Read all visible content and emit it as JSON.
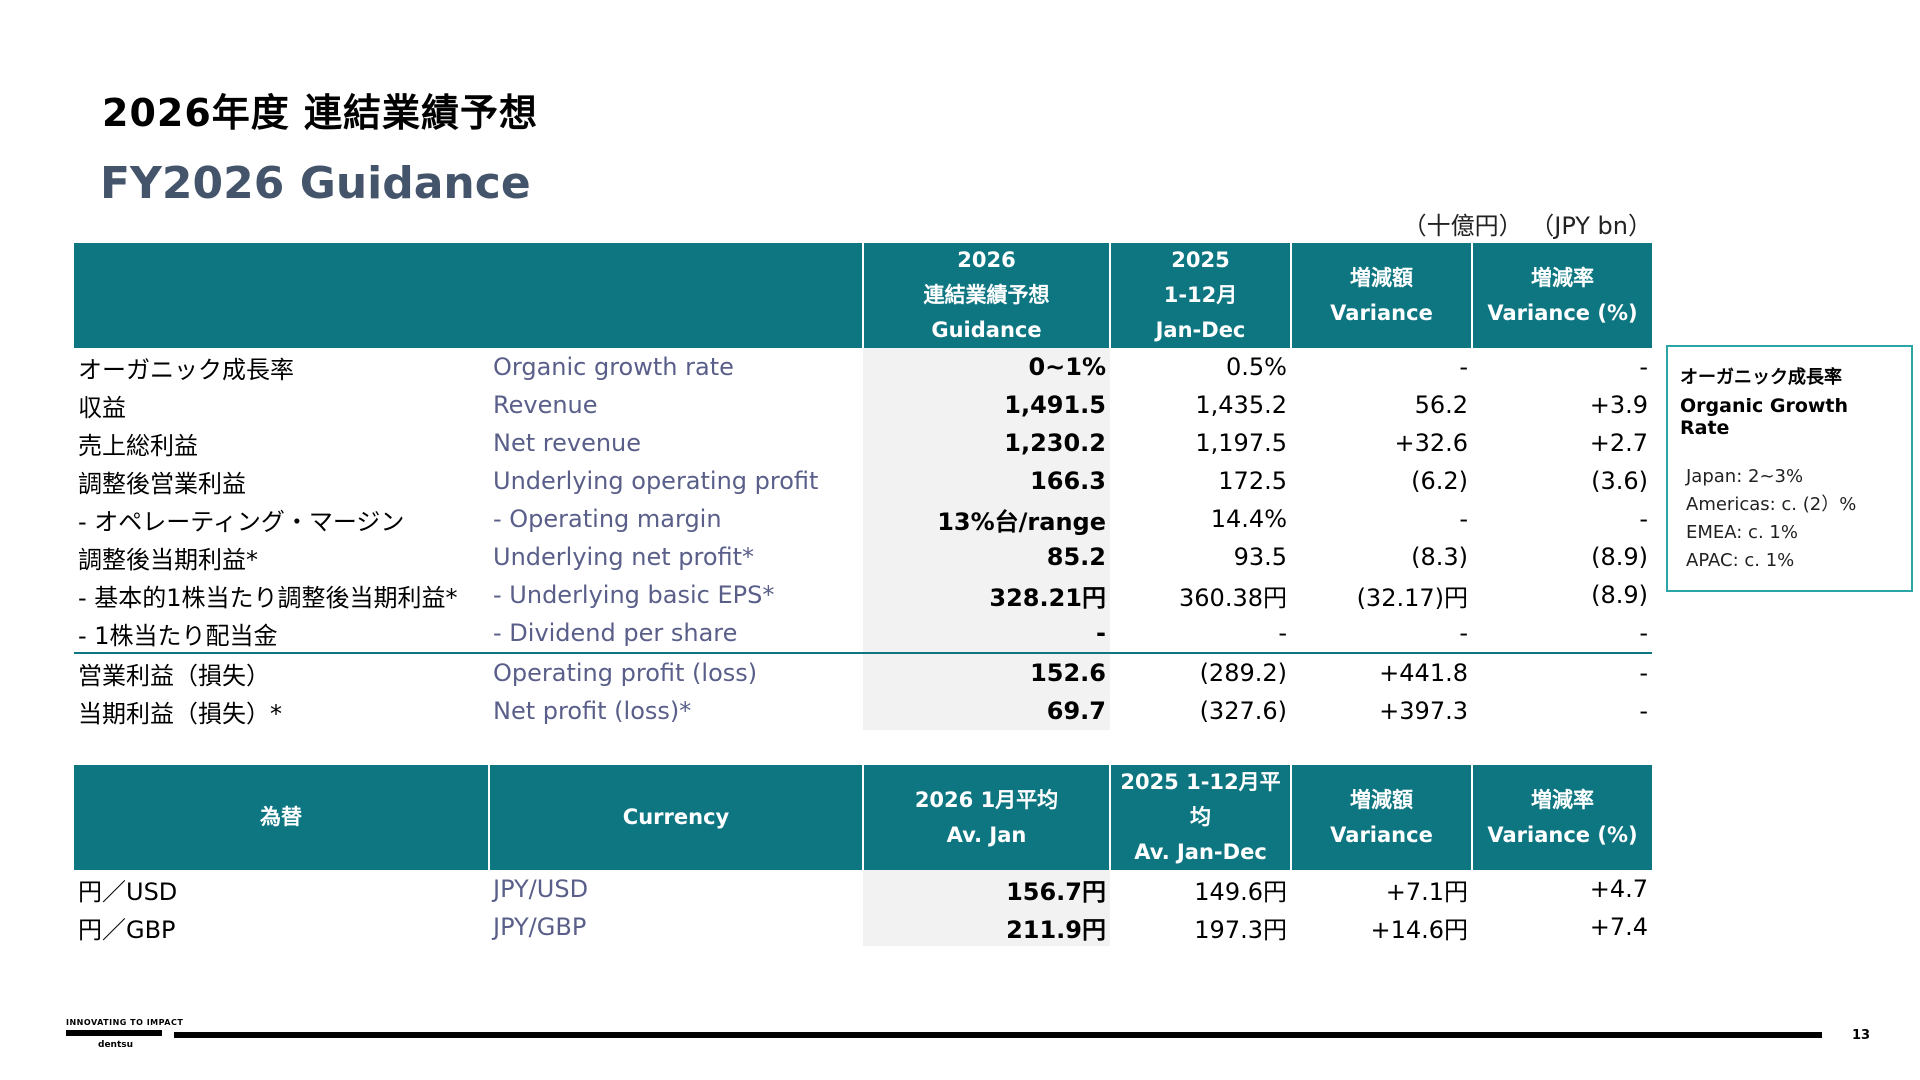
{
  "header": {
    "title_jp": "2026年度 連結業績予想",
    "title_en": "FY2026 Guidance",
    "unit": "（十億円） （JPY bn）"
  },
  "guidance_table": {
    "headers": {
      "guidance": [
        "2026",
        "連結業績予想",
        "Guidance"
      ],
      "prior": [
        "2025",
        "1-12月",
        "Jan-Dec"
      ],
      "variance": [
        "増減額",
        "Variance"
      ],
      "variance_pct": [
        "増減率",
        "Variance (%)"
      ]
    },
    "rows": [
      {
        "jp": "オーガニック成長率",
        "en": "Organic growth rate",
        "guidance": "0~1%",
        "prior": "0.5%",
        "variance": "-",
        "variance_pct": "-"
      },
      {
        "jp": "収益",
        "en": "Revenue",
        "guidance": "1,491.5",
        "prior": "1,435.2",
        "variance": "56.2",
        "variance_pct": "+3.9"
      },
      {
        "jp": "売上総利益",
        "en": "Net revenue",
        "guidance": "1,230.2",
        "prior": "1,197.5",
        "variance": "+32.6",
        "variance_pct": "+2.7"
      },
      {
        "jp": "調整後営業利益",
        "en": "Underlying operating profit",
        "guidance": "166.3",
        "prior": "172.5",
        "variance": "(6.2)",
        "variance_pct": "(3.6)"
      },
      {
        "jp": "- オペレーティング・マージン",
        "en": "- Operating margin",
        "guidance": "13%台/range",
        "prior": "14.4%",
        "variance": "-",
        "variance_pct": "-"
      },
      {
        "jp": "調整後当期利益*",
        "en": "Underlying net profit*",
        "guidance": "85.2",
        "prior": "93.5",
        "variance": "(8.3)",
        "variance_pct": "(8.9)"
      },
      {
        "jp": "- 基本的1株当たり調整後当期利益*",
        "en": "- Underlying basic EPS*",
        "guidance": "328.21円",
        "prior": "360.38円",
        "variance": "(32.17)円",
        "variance_pct": "(8.9)"
      },
      {
        "jp": "- 1株当たり配当金",
        "en": "- Dividend per share",
        "guidance": "-",
        "prior": "-",
        "variance": "-",
        "variance_pct": "-"
      },
      {
        "jp": "営業利益（損失）",
        "en": "Operating profit (loss)",
        "guidance": "152.6",
        "prior": "(289.2)",
        "variance": "+441.8",
        "variance_pct": "-"
      },
      {
        "jp": "当期利益（損失）*",
        "en": "Net profit (loss)*",
        "guidance": "69.7",
        "prior": "(327.6)",
        "variance": "+397.3",
        "variance_pct": "-"
      }
    ]
  },
  "currency_table": {
    "headers": {
      "jp": "為替",
      "en": "Currency",
      "current": [
        "2026 1月平均",
        "Av. Jan"
      ],
      "prior": [
        "2025 1-12月平均",
        "Av. Jan-Dec"
      ],
      "variance": [
        "増減額",
        "Variance"
      ],
      "variance_pct": [
        "増減率",
        "Variance (%)"
      ]
    },
    "rows": [
      {
        "jp": "円／USD",
        "en": "JPY/USD",
        "current": "156.7円",
        "prior": "149.6円",
        "variance": "+7.1円",
        "variance_pct": "+4.7"
      },
      {
        "jp": "円／GBP",
        "en": "JPY/GBP",
        "current": "211.9円",
        "prior": "197.3円",
        "variance": "+14.6円",
        "variance_pct": "+7.4"
      }
    ]
  },
  "side_box": {
    "title_jp": "オーガニック成長率",
    "title_en": "Organic Growth Rate",
    "lines": [
      "Japan: 2~3%",
      "Americas: c. (2）%",
      "EMEA: c. 1%",
      "APAC: c. 1%"
    ]
  },
  "footer": {
    "tagline": "INNOVATING TO IMPACT",
    "brand": "dentsu",
    "page_number": "13"
  }
}
